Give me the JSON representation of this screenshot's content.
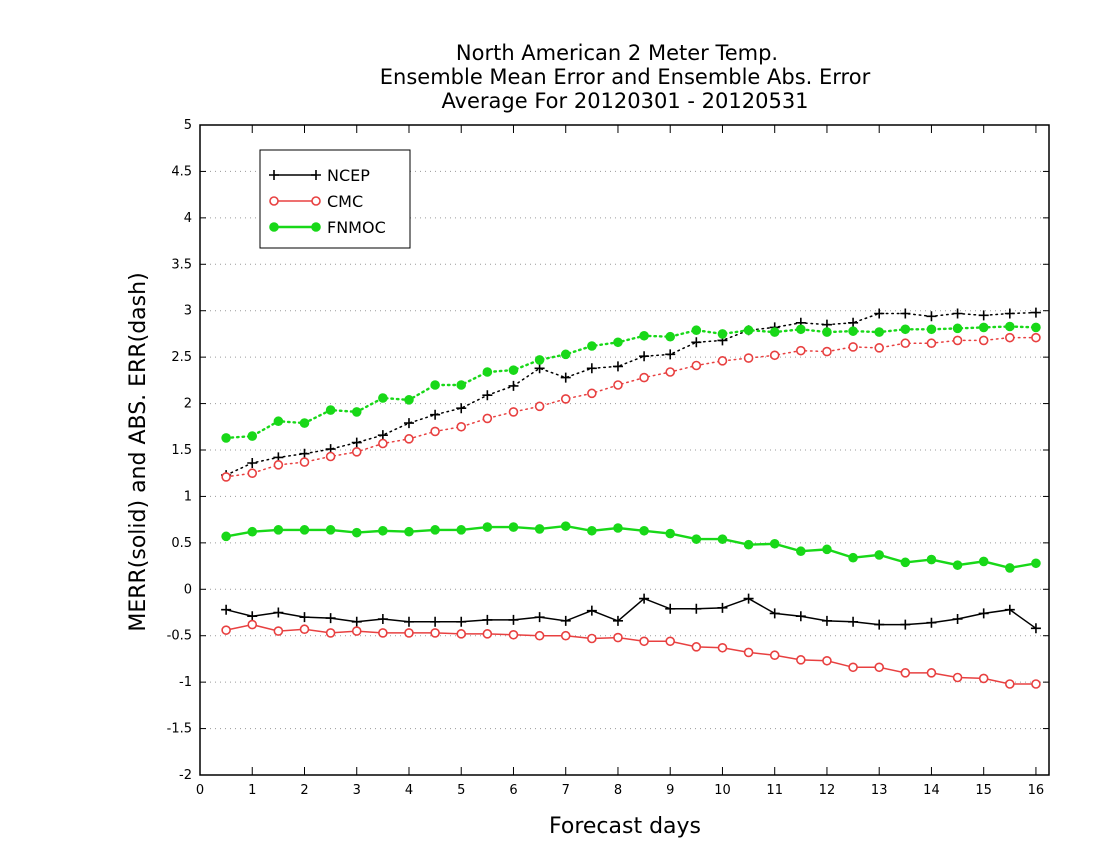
{
  "chart_data": {
    "type": "line",
    "title_lines": [
      "North American 2 Meter Temp.",
      "Ensemble Mean Error and Ensemble Abs. Error",
      "Average For 20120301 - 20120531"
    ],
    "xlabel": "Forecast days",
    "ylabel": "MERR(solid) and ABS. ERR(dash)",
    "xlim": [
      0,
      16.25
    ],
    "ylim": [
      -2,
      5
    ],
    "xticks": [
      0,
      1,
      2,
      3,
      4,
      5,
      6,
      7,
      8,
      9,
      10,
      11,
      12,
      13,
      14,
      15,
      16
    ],
    "yticks": [
      -2,
      -1.5,
      -1,
      -0.5,
      0,
      0.5,
      1,
      1.5,
      2,
      2.5,
      3,
      3.5,
      4,
      4.5,
      5
    ],
    "ytick_labels": [
      "-2",
      "-1.5",
      "-1",
      "-0.5",
      "0",
      "0.5",
      "1",
      "1.5",
      "2",
      "2.5",
      "3",
      "3.5",
      "4",
      "4.5",
      "5"
    ],
    "grid": "horizontal dotted",
    "legend_position": "top-left",
    "x": [
      0.5,
      1,
      1.5,
      2,
      2.5,
      3,
      3.5,
      4,
      4.5,
      5,
      5.5,
      6,
      6.5,
      7,
      7.5,
      8,
      8.5,
      9,
      9.5,
      10,
      10.5,
      11,
      11.5,
      12,
      12.5,
      13,
      13.5,
      14,
      14.5,
      15,
      15.5,
      16
    ],
    "series": [
      {
        "name": "NCEP",
        "color": "#000000",
        "marker": "plus",
        "merr": [
          -0.22,
          -0.29,
          -0.25,
          -0.3,
          -0.31,
          -0.35,
          -0.32,
          -0.35,
          -0.35,
          -0.35,
          -0.33,
          -0.33,
          -0.3,
          -0.34,
          -0.23,
          -0.34,
          -0.1,
          -0.21,
          -0.21,
          -0.2,
          -0.1,
          -0.26,
          -0.29,
          -0.34,
          -0.35,
          -0.38,
          -0.38,
          -0.36,
          -0.32,
          -0.26,
          -0.22,
          -0.42
        ],
        "abs_err": [
          1.23,
          1.36,
          1.42,
          1.46,
          1.51,
          1.58,
          1.66,
          1.79,
          1.88,
          1.95,
          2.09,
          2.19,
          2.38,
          2.28,
          2.38,
          2.4,
          2.51,
          2.53,
          2.66,
          2.68,
          2.79,
          2.82,
          2.87,
          2.85,
          2.87,
          2.97,
          2.97,
          2.94,
          2.97,
          2.95,
          2.97,
          2.98
        ]
      },
      {
        "name": "CMC",
        "color": "#e84040",
        "marker": "open-circle",
        "merr": [
          -0.44,
          -0.38,
          -0.45,
          -0.43,
          -0.47,
          -0.45,
          -0.47,
          -0.47,
          -0.47,
          -0.48,
          -0.48,
          -0.49,
          -0.5,
          -0.5,
          -0.53,
          -0.52,
          -0.56,
          -0.56,
          -0.62,
          -0.63,
          -0.68,
          -0.71,
          -0.76,
          -0.77,
          -0.84,
          -0.84,
          -0.9,
          -0.9,
          -0.95,
          -0.96,
          -1.02,
          -1.02
        ],
        "abs_err": [
          1.21,
          1.25,
          1.34,
          1.37,
          1.43,
          1.48,
          1.57,
          1.62,
          1.7,
          1.75,
          1.84,
          1.91,
          1.97,
          2.05,
          2.11,
          2.2,
          2.28,
          2.34,
          2.41,
          2.46,
          2.49,
          2.52,
          2.57,
          2.56,
          2.61,
          2.6,
          2.65,
          2.65,
          2.68,
          2.68,
          2.71,
          2.71
        ]
      },
      {
        "name": "FNMOC",
        "color": "#18d818",
        "marker": "filled-circle",
        "merr": [
          0.57,
          0.62,
          0.64,
          0.64,
          0.64,
          0.61,
          0.63,
          0.62,
          0.64,
          0.64,
          0.67,
          0.67,
          0.65,
          0.68,
          0.63,
          0.66,
          0.63,
          0.6,
          0.54,
          0.54,
          0.48,
          0.49,
          0.41,
          0.43,
          0.34,
          0.37,
          0.29,
          0.32,
          0.26,
          0.3,
          0.23,
          0.28
        ],
        "abs_err": [
          1.63,
          1.65,
          1.81,
          1.79,
          1.93,
          1.91,
          2.06,
          2.04,
          2.2,
          2.2,
          2.34,
          2.36,
          2.47,
          2.53,
          2.62,
          2.66,
          2.73,
          2.72,
          2.79,
          2.75,
          2.79,
          2.77,
          2.8,
          2.77,
          2.78,
          2.77,
          2.8,
          2.8,
          2.81,
          2.82,
          2.83,
          2.82
        ]
      }
    ]
  }
}
